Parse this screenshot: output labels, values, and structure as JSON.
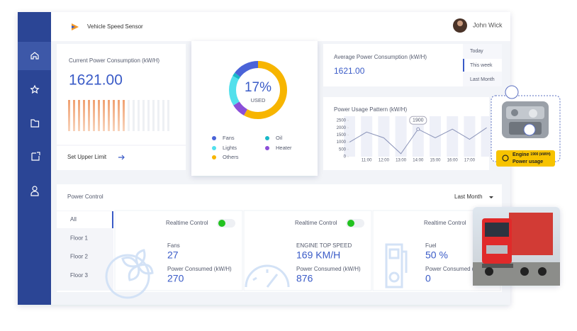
{
  "header": {
    "title": "Vehicle Speed Sensor",
    "user": "John Wick"
  },
  "current_power": {
    "title": "Current Power Consumption (kW/H)",
    "value": "1621.00",
    "action": "Set Upper Limit"
  },
  "usage_donut": {
    "percent": "17%",
    "label": "USED",
    "legend": [
      {
        "name": "Fans",
        "color": "#4a63d8",
        "value": 15
      },
      {
        "name": "Oil",
        "color": "#19b8c8",
        "value": 2
      },
      {
        "name": "Lights",
        "color": "#52e0ec",
        "value": 17
      },
      {
        "name": "Heater",
        "color": "#8b4fd8",
        "value": 8
      },
      {
        "name": "Others",
        "color": "#f7b500",
        "value": 58
      }
    ]
  },
  "average_power": {
    "title": "Average Power Consumption (kW/H)",
    "value": "1621.00",
    "tabs": [
      "Today",
      "This week",
      "Last Month"
    ],
    "active_tab": 1
  },
  "usage_pattern": {
    "title": "Power Usage Pattern (kW/H)",
    "type": "line",
    "x": [
      null,
      "11:00",
      "12:00",
      "13:00",
      "14:00",
      "15:00",
      "16:00",
      "17:00",
      null
    ],
    "values": [
      1000,
      1700,
      1300,
      200,
      1900,
      1300,
      1900,
      1200,
      2000
    ],
    "callout": {
      "index": 4,
      "label": "1900"
    },
    "color": "#8a93b8",
    "ylim": [
      0,
      2500
    ],
    "yticks": [
      0,
      500,
      1000,
      1500,
      2000,
      2500
    ]
  },
  "engine_badge": {
    "title": "Engine",
    "value": "1900 (kW/H)",
    "subtitle": "Power usage"
  },
  "power_control": {
    "title": "Power Control",
    "period": "Last Month",
    "floors": [
      "All",
      "Floor 1",
      "Floor 2",
      "Floor 3"
    ],
    "active_floor": 0,
    "cards": [
      {
        "control": "Realtime Control",
        "label": "Fans",
        "value": "27",
        "consumed_label": "Power Consumed (kW/H)",
        "consumed": "270"
      },
      {
        "control": "Realtime Control",
        "label": "ENGINE TOP SPEED",
        "value": "169 KM/H",
        "consumed_label": "Power Consumed (kW/H)",
        "consumed": "876"
      },
      {
        "control": "Realtime Control",
        "label": "Fuel",
        "value": "50 %",
        "consumed_label": "Power Consumed (kW/H)",
        "consumed": "0"
      }
    ]
  }
}
